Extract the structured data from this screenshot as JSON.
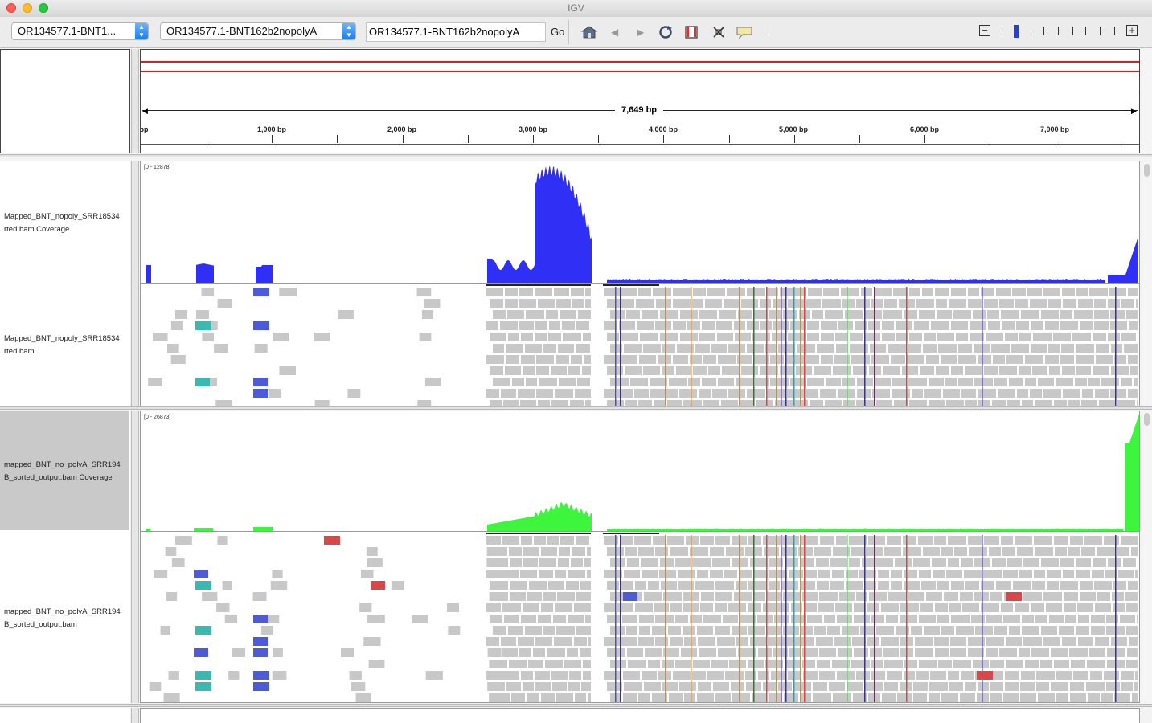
{
  "window": {
    "title": "IGV"
  },
  "toolbar": {
    "genome_select": "OR134577.1-BNT1...",
    "chromosome_select": "OR134577.1-BNT162b2nopolyA",
    "locus_value": "OR134577.1-BNT162b2nopolyA",
    "go_label": "Go",
    "icons": [
      "home-icon",
      "back-icon",
      "forward-icon",
      "refresh-icon",
      "roi-icon",
      "fit-icon",
      "popup-icon"
    ],
    "zoom_out": "−",
    "zoom_in": "+"
  },
  "ruler": {
    "span_label": "7,649 bp",
    "tick_labels": [
      "bp",
      "1,000 bp",
      "2,000 bp",
      "3,000 bp",
      "4,000 bp",
      "5,000 bp",
      "6,000 bp",
      "7,000 bp"
    ]
  },
  "tracks": [
    {
      "coverage_label": "Mapped_BNT_nopoly_SRR18534\nrted.bam Coverage",
      "alignment_label": "Mapped_BNT_nopoly_SRR18534\nrted.bam",
      "data_range": "[0 - 12878]",
      "color": "#2f2ff5"
    },
    {
      "coverage_label": "mapped_BNT_no_polyA_SRR194\nB_sorted_output.bam Coverage",
      "alignment_label": "mapped_BNT_no_polyA_SRR194\nB_sorted_output.bam",
      "data_range": "[0 - 26873]",
      "color": "#3ef53e"
    }
  ],
  "colors": {
    "ruler_line": "#e51b1b",
    "read": "#c8c8c8",
    "read_blue": "#4d5bd6",
    "read_teal": "#3db8b0",
    "read_red": "#d94848"
  }
}
